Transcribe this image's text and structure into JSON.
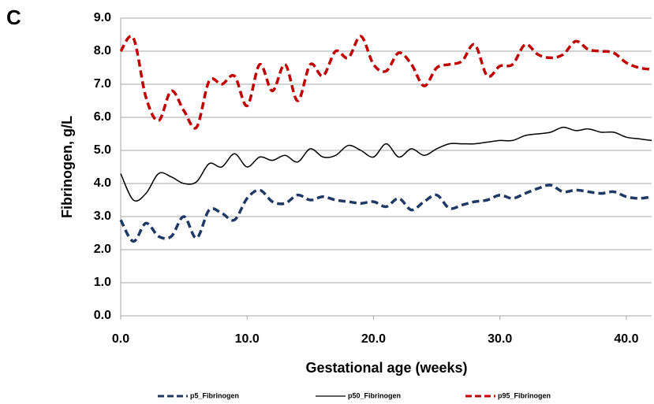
{
  "chart_data": {
    "type": "line",
    "panel_label": "C",
    "xlabel": "Gestational  age (weeks)",
    "ylabel": "Fibrinogen, g/L",
    "x": [
      0,
      1,
      2,
      3,
      4,
      5,
      6,
      7,
      8,
      9,
      10,
      11,
      12,
      13,
      14,
      15,
      16,
      17,
      18,
      19,
      20,
      21,
      22,
      23,
      24,
      25,
      26,
      27,
      28,
      29,
      30,
      31,
      32,
      33,
      34,
      35,
      36,
      37,
      38,
      39,
      40,
      41,
      42
    ],
    "series": [
      {
        "name": "p5_Fibrinogen",
        "color": "#1f3864",
        "dash": true,
        "values": [
          2.9,
          2.25,
          2.8,
          2.4,
          2.4,
          3.0,
          2.35,
          3.2,
          3.1,
          2.9,
          3.55,
          3.8,
          3.45,
          3.4,
          3.65,
          3.5,
          3.6,
          3.5,
          3.45,
          3.4,
          3.45,
          3.3,
          3.55,
          3.2,
          3.45,
          3.65,
          3.25,
          3.35,
          3.45,
          3.5,
          3.65,
          3.55,
          3.7,
          3.85,
          3.95,
          3.75,
          3.8,
          3.75,
          3.7,
          3.75,
          3.6,
          3.55,
          3.6
        ]
      },
      {
        "name": "p50_Fibrinogen",
        "color": "#000000",
        "dash": false,
        "values": [
          4.3,
          3.5,
          3.7,
          4.3,
          4.2,
          4.0,
          4.05,
          4.6,
          4.5,
          4.9,
          4.5,
          4.8,
          4.7,
          4.85,
          4.65,
          5.05,
          4.8,
          4.85,
          5.15,
          5.0,
          4.8,
          5.2,
          4.8,
          5.05,
          4.85,
          5.05,
          5.2,
          5.2,
          5.2,
          5.25,
          5.3,
          5.3,
          5.45,
          5.5,
          5.55,
          5.7,
          5.6,
          5.65,
          5.55,
          5.55,
          5.4,
          5.35,
          5.3
        ]
      },
      {
        "name": "p95_Fibrinogen",
        "color": "#c00000",
        "dash": true,
        "values": [
          8.0,
          8.4,
          6.6,
          5.9,
          6.8,
          6.2,
          5.7,
          7.1,
          7.0,
          7.25,
          6.35,
          7.6,
          6.8,
          7.6,
          6.5,
          7.6,
          7.25,
          8.0,
          7.8,
          8.45,
          7.6,
          7.4,
          7.95,
          7.6,
          6.95,
          7.5,
          7.6,
          7.7,
          8.2,
          7.25,
          7.55,
          7.6,
          8.2,
          7.9,
          7.8,
          7.9,
          8.3,
          8.05,
          8.0,
          7.95,
          7.65,
          7.5,
          7.45
        ]
      }
    ],
    "xlim": [
      0,
      42
    ],
    "xticks": [
      {
        "value": 0,
        "label": "0.0"
      },
      {
        "value": 10,
        "label": "10.0"
      },
      {
        "value": 20,
        "label": "20.0"
      },
      {
        "value": 30,
        "label": "30.0"
      },
      {
        "value": 40,
        "label": "40.0"
      }
    ],
    "ylim": [
      0,
      9
    ],
    "yticks": [
      {
        "value": 0,
        "label": "0.0"
      },
      {
        "value": 1,
        "label": "1.0"
      },
      {
        "value": 2,
        "label": "2.0"
      },
      {
        "value": 3,
        "label": "3.0"
      },
      {
        "value": 4,
        "label": "4.0"
      },
      {
        "value": 5,
        "label": "5.0"
      },
      {
        "value": 6,
        "label": "6.0"
      },
      {
        "value": 7,
        "label": "7.0"
      },
      {
        "value": 8,
        "label": "8.0"
      },
      {
        "value": 9,
        "label": "9.0"
      }
    ],
    "grid": true,
    "legend": "bottom"
  }
}
